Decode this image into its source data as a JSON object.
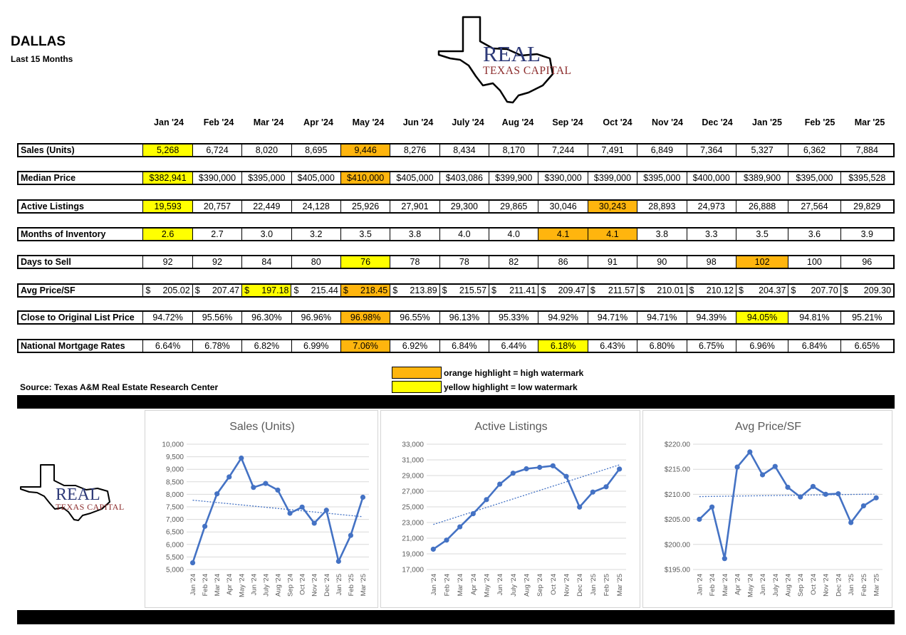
{
  "header": {
    "title": "DALLAS",
    "subtitle": "Last 15 Months"
  },
  "logo": {
    "line1": "REAL",
    "line2": "TEXAS CAPITAL"
  },
  "months": [
    "Jan '24",
    "Feb '24",
    "Mar '24",
    "Apr '24",
    "May '24",
    "Jun '24",
    "July '24",
    "Aug '24",
    "Sep '24",
    "Oct '24",
    "Nov '24",
    "Dec '24",
    "Jan '25",
    "Feb '25",
    "Mar '25"
  ],
  "rows": [
    {
      "label": "Sales (Units)",
      "values": [
        "5,268",
        "6,724",
        "8,020",
        "8,695",
        "9,446",
        "8,276",
        "8,434",
        "8,170",
        "7,244",
        "7,491",
        "6,849",
        "7,364",
        "5,327",
        "6,362",
        "7,884"
      ],
      "highlights": {
        "0": "yellow",
        "4": "orange"
      }
    },
    {
      "label": "Median Price",
      "values": [
        "$382,941",
        "$390,000",
        "$395,000",
        "$405,000",
        "$410,000",
        "$405,000",
        "$403,086",
        "$399,900",
        "$390,000",
        "$399,000",
        "$395,000",
        "$400,000",
        "$389,900",
        "$395,000",
        "$395,528"
      ],
      "highlights": {
        "0": "yellow",
        "4": "orange"
      }
    },
    {
      "label": "Active Listings",
      "values": [
        "19,593",
        "20,757",
        "22,449",
        "24,128",
        "25,926",
        "27,901",
        "29,300",
        "29,865",
        "30,046",
        "30,243",
        "28,893",
        "24,973",
        "26,888",
        "27,564",
        "29,829"
      ],
      "highlights": {
        "0": "yellow",
        "9": "orange"
      }
    },
    {
      "label": "Months of Inventory",
      "values": [
        "2.6",
        "2.7",
        "3.0",
        "3.2",
        "3.5",
        "3.8",
        "4.0",
        "4.0",
        "4.1",
        "4.1",
        "3.8",
        "3.3",
        "3.5",
        "3.6",
        "3.9"
      ],
      "highlights": {
        "0": "yellow",
        "8": "orange",
        "9": "orange"
      }
    },
    {
      "label": "Days to Sell",
      "values": [
        "92",
        "92",
        "84",
        "80",
        "76",
        "78",
        "78",
        "82",
        "86",
        "91",
        "90",
        "98",
        "102",
        "100",
        "96"
      ],
      "highlights": {
        "4": "yellow",
        "12": "orange"
      }
    },
    {
      "label": "Avg Price/SF",
      "currency": "$",
      "values": [
        "205.02",
        "207.47",
        "197.18",
        "215.44",
        "218.45",
        "213.89",
        "215.57",
        "211.41",
        "209.47",
        "211.57",
        "210.01",
        "210.12",
        "204.37",
        "207.70",
        "209.30"
      ],
      "highlights": {
        "2": "yellow",
        "4": "orange"
      }
    },
    {
      "label": "Close to Original List Price",
      "values": [
        "94.72%",
        "95.56%",
        "96.30%",
        "96.96%",
        "96.98%",
        "96.55%",
        "96.13%",
        "95.33%",
        "94.92%",
        "94.71%",
        "94.71%",
        "94.39%",
        "94.05%",
        "94.81%",
        "95.21%"
      ],
      "highlights": {
        "4": "orange",
        "12": "yellow"
      }
    },
    {
      "label": "National Mortgage Rates",
      "values": [
        "6.64%",
        "6.78%",
        "6.82%",
        "6.99%",
        "7.06%",
        "6.92%",
        "6.84%",
        "6.44%",
        "6.18%",
        "6.43%",
        "6.80%",
        "6.75%",
        "6.96%",
        "6.84%",
        "6.65%"
      ],
      "highlights": {
        "4": "orange",
        "8": "yellow"
      }
    }
  ],
  "legend": {
    "orange": "orange highlight = high watermark",
    "yellow": "yellow highlight = low watermark"
  },
  "colors": {
    "orange": "#FFB50E",
    "yellow": "#FFFF00",
    "series": "#4472C4"
  },
  "source": "Source: Texas A&M Real Estate Research Center",
  "chart_data": [
    {
      "type": "line",
      "title": "Sales (Units)",
      "categories": [
        "Jan '24",
        "Feb '24",
        "Mar '24",
        "Apr '24",
        "May '24",
        "Jun '24",
        "July '24",
        "Aug '24",
        "Sep '24",
        "Oct '24",
        "Nov '24",
        "Dec '24",
        "Jan '25",
        "Feb '25",
        "Mar '25"
      ],
      "values": [
        5268,
        6724,
        8020,
        8695,
        9446,
        8276,
        8434,
        8170,
        7244,
        7491,
        6849,
        7364,
        5327,
        6362,
        7884
      ],
      "ylim": [
        5000,
        10000
      ],
      "yticks": [
        "5,000",
        "5,500",
        "6,000",
        "6,500",
        "7,000",
        "7,500",
        "8,000",
        "8,500",
        "9,000",
        "9,500",
        "10,000"
      ],
      "trendline": true,
      "grid": true
    },
    {
      "type": "line",
      "title": "Active Listings",
      "categories": [
        "Jan '24",
        "Feb '24",
        "Mar '24",
        "Apr '24",
        "May '24",
        "Jun '24",
        "July '24",
        "Aug '24",
        "Sep '24",
        "Oct '24",
        "Nov '24",
        "Dec '24",
        "Jan '25",
        "Feb '25",
        "Mar '25"
      ],
      "values": [
        19593,
        20757,
        22449,
        24128,
        25926,
        27901,
        29300,
        29865,
        30046,
        30243,
        28893,
        24973,
        26888,
        27564,
        29829
      ],
      "ylim": [
        17000,
        33000
      ],
      "yticks": [
        "17,000",
        "19,000",
        "21,000",
        "23,000",
        "25,000",
        "27,000",
        "29,000",
        "31,000",
        "33,000"
      ],
      "trendline": true,
      "grid": true
    },
    {
      "type": "line",
      "title": "Avg Price/SF",
      "categories": [
        "Jan '24",
        "Feb '24",
        "Mar '24",
        "Apr '24",
        "May '24",
        "Jun '24",
        "July '24",
        "Aug '24",
        "Sep '24",
        "Oct '24",
        "Nov '24",
        "Dec '24",
        "Jan '25",
        "Feb '25",
        "Mar '25"
      ],
      "values": [
        205.02,
        207.47,
        197.18,
        215.44,
        218.45,
        213.89,
        215.57,
        211.41,
        209.47,
        211.57,
        210.01,
        210.12,
        204.37,
        207.7,
        209.3
      ],
      "ylim": [
        195,
        220
      ],
      "yticks": [
        "$195.00",
        "$200.00",
        "$205.00",
        "$210.00",
        "$215.00",
        "$220.00"
      ],
      "trendline": true,
      "grid": true
    }
  ]
}
